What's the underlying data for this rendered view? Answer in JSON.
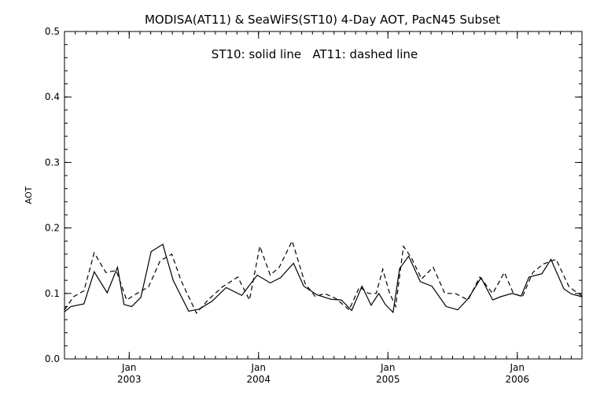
{
  "chart_data": {
    "type": "line",
    "title": "MODISA(AT11) & SeaWiFS(ST10) 4-Day AOT, PacN45 Subset",
    "annotation": "ST10: solid line   AT11: dashed line",
    "ylabel": "AOT",
    "xlabel": "",
    "ylim": [
      0.0,
      0.5
    ],
    "xlim": [
      2002.5,
      2006.5
    ],
    "y_ticks": [
      "0.0",
      "0.1",
      "0.2",
      "0.3",
      "0.4",
      "0.5"
    ],
    "x_ticks": [
      {
        "month": "Jan",
        "year": "2003",
        "at": 2003.0
      },
      {
        "month": "Jan",
        "year": "2004",
        "at": 2004.0
      },
      {
        "month": "Jan",
        "year": "2005",
        "at": 2005.0
      },
      {
        "month": "Jan",
        "year": "2006",
        "at": 2006.0
      }
    ],
    "grid": false,
    "series": [
      {
        "style": "solid",
        "x": [
          2002.5,
          2002.55,
          2002.65,
          2002.73,
          2002.83,
          2002.91,
          2002.96,
          2003.02,
          2003.09,
          2003.17,
          2003.26,
          2003.34,
          2003.46,
          2003.54,
          2003.64,
          2003.75,
          2003.87,
          2003.99,
          2004.09,
          2004.17,
          2004.27,
          2004.35,
          2004.45,
          2004.56,
          2004.64,
          2004.72,
          2004.8,
          2004.87,
          2004.93,
          2004.98,
          2005.04,
          2005.09,
          2005.16,
          2005.25,
          2005.34,
          2005.45,
          2005.54,
          2005.62,
          2005.72,
          2005.81,
          2005.87,
          2005.96,
          2006.03,
          2006.09,
          2006.19,
          2006.26,
          2006.36,
          2006.42,
          2006.5
        ],
        "y": [
          0.072,
          0.08,
          0.084,
          0.133,
          0.101,
          0.14,
          0.083,
          0.08,
          0.094,
          0.164,
          0.175,
          0.12,
          0.073,
          0.076,
          0.088,
          0.109,
          0.097,
          0.128,
          0.116,
          0.124,
          0.146,
          0.111,
          0.098,
          0.091,
          0.09,
          0.074,
          0.111,
          0.082,
          0.1,
          0.083,
          0.071,
          0.138,
          0.157,
          0.118,
          0.111,
          0.08,
          0.075,
          0.092,
          0.124,
          0.09,
          0.095,
          0.1,
          0.096,
          0.125,
          0.13,
          0.152,
          0.107,
          0.099,
          0.095
        ]
      },
      {
        "style": "dashed",
        "x": [
          2002.5,
          2002.57,
          2002.65,
          2002.73,
          2002.82,
          2002.9,
          2002.98,
          2003.06,
          2003.15,
          2003.24,
          2003.33,
          2003.4,
          2003.52,
          2003.61,
          2003.72,
          2003.84,
          2003.93,
          2004.01,
          2004.09,
          2004.16,
          2004.26,
          2004.36,
          2004.44,
          2004.51,
          2004.6,
          2004.7,
          2004.78,
          2004.85,
          2004.91,
          2004.96,
          2005.01,
          2005.06,
          2005.12,
          2005.18,
          2005.26,
          2005.35,
          2005.44,
          2005.52,
          2005.62,
          2005.71,
          2005.81,
          2005.9,
          2005.97,
          2006.04,
          2006.12,
          2006.2,
          2006.3,
          2006.4,
          2006.5
        ],
        "y": [
          0.075,
          0.095,
          0.104,
          0.162,
          0.132,
          0.135,
          0.09,
          0.1,
          0.11,
          0.15,
          0.16,
          0.12,
          0.07,
          0.09,
          0.11,
          0.125,
          0.09,
          0.172,
          0.128,
          0.14,
          0.18,
          0.115,
          0.095,
          0.1,
          0.092,
          0.075,
          0.11,
          0.1,
          0.1,
          0.137,
          0.102,
          0.08,
          0.172,
          0.155,
          0.122,
          0.14,
          0.1,
          0.1,
          0.09,
          0.125,
          0.1,
          0.132,
          0.1,
          0.095,
          0.132,
          0.145,
          0.152,
          0.11,
          0.096
        ]
      }
    ]
  }
}
